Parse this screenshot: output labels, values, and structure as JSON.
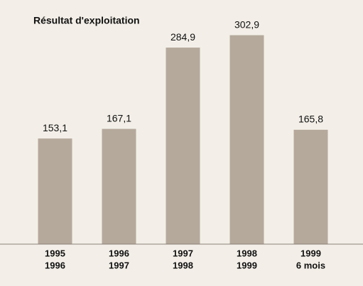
{
  "chart_data": {
    "type": "bar",
    "title": "Résultat d'exploitation",
    "categories": [
      [
        "1995",
        "1996"
      ],
      [
        "1996",
        "1997"
      ],
      [
        "1997",
        "1998"
      ],
      [
        "1998",
        "1999"
      ],
      [
        "1999",
        "6 mois"
      ]
    ],
    "values": [
      153.1,
      167.1,
      284.9,
      302.9,
      165.8
    ],
    "value_labels": [
      "153,1",
      "167,1",
      "284,9",
      "302,9",
      "165,8"
    ],
    "color": "#b5a99b"
  }
}
